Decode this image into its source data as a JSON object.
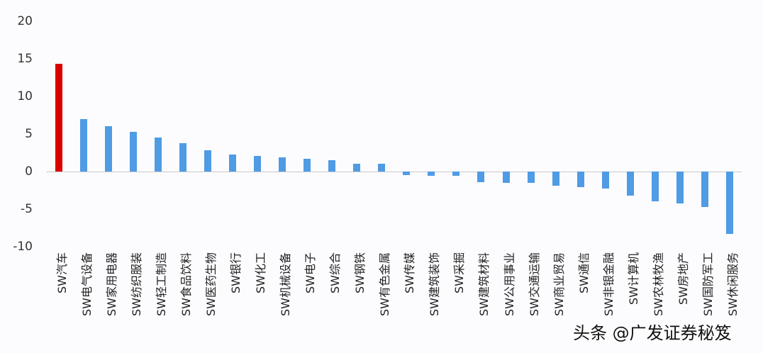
{
  "chart_data": {
    "type": "bar",
    "title": "",
    "xlabel": "",
    "ylabel": "",
    "ylim": [
      -10,
      20
    ],
    "yticks": [
      20,
      15,
      10,
      5,
      0,
      -5,
      -10
    ],
    "grid": false,
    "legend": null,
    "highlight_color": "#dd0000",
    "bar_color": "#4f9be4",
    "categories": [
      "SW汽车",
      "SW电气设备",
      "SW家用电器",
      "SW纺织服装",
      "SW轻工制造",
      "SW食品饮料",
      "SW医药生物",
      "SW银行",
      "SW化工",
      "SW机械设备",
      "SW电子",
      "SW综合",
      "SW钢铁",
      "SW有色金属",
      "SW传媒",
      "SW建筑装饰",
      "SW采掘",
      "SW建筑材料",
      "SW公用事业",
      "SW交通运输",
      "SW商业贸易",
      "SW通信",
      "SW非银金融",
      "SW计算机",
      "SW农林牧渔",
      "SW房地产",
      "SW国防军工",
      "SW休闲服务"
    ],
    "values": [
      14.3,
      7.0,
      6.0,
      5.3,
      4.5,
      3.8,
      2.8,
      2.3,
      2.1,
      1.9,
      1.7,
      1.5,
      1.0,
      1.0,
      -0.45,
      -0.6,
      -0.6,
      -1.4,
      -1.5,
      -1.5,
      -1.9,
      -2.1,
      -2.3,
      -3.2,
      -4.0,
      -4.2,
      -4.7,
      -8.3
    ],
    "highlight_index": 0
  },
  "watermark": "头条 @广发证券秘笈"
}
